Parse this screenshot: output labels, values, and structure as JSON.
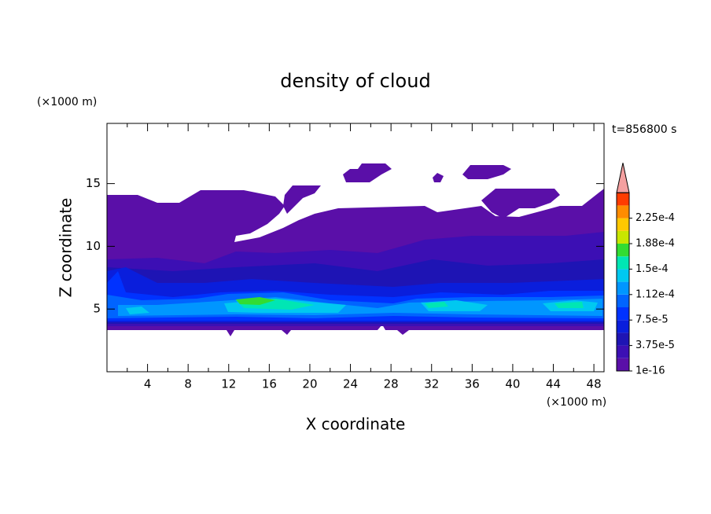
{
  "chart_data": {
    "type": "contour",
    "title": "density of cloud",
    "subtitle": "t=856800 s",
    "x_label": "X coordinate",
    "y_label": "Z coordinate",
    "x_unit": "(×1000 m)",
    "y_unit": "(×1000 m)",
    "xlim": [
      0,
      49
    ],
    "ylim": [
      0,
      19.8
    ],
    "xticks": [
      4,
      8,
      12,
      16,
      20,
      24,
      28,
      32,
      36,
      40,
      44,
      48
    ],
    "yticks": [
      5,
      10,
      15
    ],
    "colorbar": {
      "ticks": [
        {
          "value": 1e-16,
          "label": "1e-16"
        },
        {
          "value": 3.75e-05,
          "label": "3.75e-5"
        },
        {
          "value": 7.5e-05,
          "label": "7.5e-5"
        },
        {
          "value": 0.000112,
          "label": "1.12e-4"
        },
        {
          "value": 0.00015,
          "label": "1.5e-4"
        },
        {
          "value": 0.000188,
          "label": "1.88e-4"
        },
        {
          "value": 0.000225,
          "label": "2.25e-4"
        }
      ],
      "colors": [
        "#5a0fa8",
        "#3c0fb4",
        "#1e14b4",
        "#0a1edc",
        "#0032ff",
        "#0064ff",
        "#0096ff",
        "#00c8f0",
        "#00e6b4",
        "#32dc32",
        "#c8e600",
        "#ffc800",
        "#ff8c00",
        "#ff3c00"
      ],
      "extend_color": "#f4a0a0"
    }
  }
}
